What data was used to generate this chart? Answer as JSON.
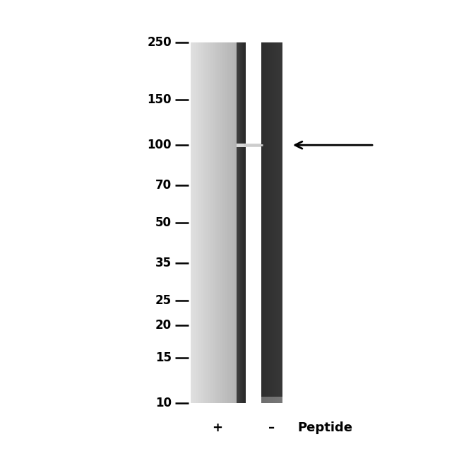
{
  "background_color": "#ffffff",
  "fig_width": 6.5,
  "fig_height": 6.59,
  "dpi": 100,
  "mw_labels": [
    "250",
    "150",
    "100",
    "70",
    "50",
    "35",
    "25",
    "20",
    "15",
    "10"
  ],
  "mw_values": [
    250,
    150,
    100,
    70,
    50,
    35,
    25,
    20,
    15,
    10
  ],
  "font_size_mw": 12,
  "font_size_labels": 13,
  "background_color_hex": "#ffffff"
}
